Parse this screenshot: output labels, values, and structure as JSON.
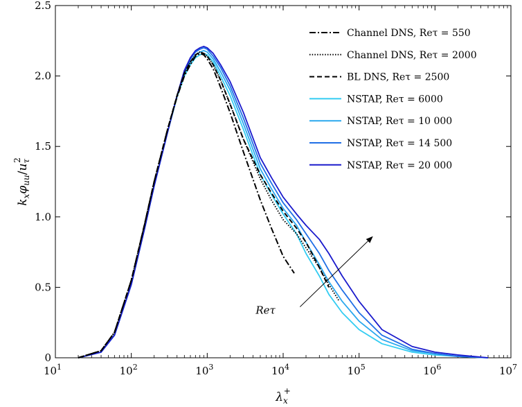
{
  "chart_data": {
    "type": "line",
    "xscale": "log",
    "xlim": [
      10,
      10000000
    ],
    "ylim": [
      0,
      2.5
    ],
    "xticks": [
      10,
      100,
      1000,
      10000,
      100000,
      1000000,
      10000000
    ],
    "xtick_labels": [
      {
        "base": "10",
        "exp": "1"
      },
      {
        "base": "10",
        "exp": "2"
      },
      {
        "base": "10",
        "exp": "3"
      },
      {
        "base": "10",
        "exp": "4"
      },
      {
        "base": "10",
        "exp": "5"
      },
      {
        "base": "10",
        "exp": "6"
      },
      {
        "base": "10",
        "exp": "7"
      }
    ],
    "yticks": [
      0,
      0.5,
      1.0,
      1.5,
      2.0,
      2.5
    ],
    "ytick_labels": [
      "0",
      "0.5",
      "1.0",
      "1.5",
      "2.0",
      "2.5"
    ],
    "xlabel": "λx+",
    "ylabel": "kxφuu/uτ2",
    "grid": false,
    "legend_position": "top-right",
    "annotation": {
      "text": "Reτ",
      "arrow_from": [
        30000,
        0.45
      ],
      "arrow_to": [
        150000,
        0.8
      ]
    },
    "series": [
      {
        "name": "Channel DNS, Reτ = 550",
        "color": "#000000",
        "style": "dashdot",
        "x": [
          20,
          40,
          60,
          100,
          150,
          200,
          300,
          400,
          500,
          600,
          700,
          800,
          900,
          1000,
          1200,
          1500,
          2000,
          3000,
          5000,
          7000,
          10000,
          14000
        ],
        "y": [
          0.0,
          0.05,
          0.18,
          0.55,
          0.95,
          1.25,
          1.62,
          1.85,
          2.0,
          2.08,
          2.14,
          2.16,
          2.15,
          2.12,
          2.05,
          1.92,
          1.74,
          1.46,
          1.12,
          0.92,
          0.72,
          0.6
        ]
      },
      {
        "name": "Channel DNS, Reτ = 2000",
        "color": "#000000",
        "style": "dotted",
        "x": [
          20,
          40,
          60,
          100,
          150,
          200,
          300,
          400,
          500,
          600,
          700,
          800,
          900,
          1000,
          1200,
          1500,
          2000,
          3000,
          5000,
          7000,
          10000,
          15000,
          20000,
          30000,
          40000,
          55000
        ],
        "y": [
          0.0,
          0.05,
          0.18,
          0.55,
          0.95,
          1.25,
          1.62,
          1.86,
          2.02,
          2.1,
          2.15,
          2.17,
          2.16,
          2.14,
          2.08,
          1.97,
          1.8,
          1.55,
          1.27,
          1.12,
          0.98,
          0.88,
          0.78,
          0.64,
          0.52,
          0.4
        ]
      },
      {
        "name": "BL DNS, Reτ = 2500",
        "color": "#000000",
        "style": "dashed",
        "x": [
          20,
          40,
          60,
          100,
          150,
          200,
          300,
          400,
          500,
          600,
          700,
          800,
          900,
          1000,
          1200,
          1500,
          2000,
          3000,
          5000,
          7000,
          10000,
          15000,
          20000,
          30000,
          40000
        ],
        "y": [
          0.0,
          0.05,
          0.18,
          0.55,
          0.95,
          1.25,
          1.62,
          1.86,
          2.02,
          2.1,
          2.15,
          2.17,
          2.16,
          2.14,
          2.08,
          1.97,
          1.8,
          1.55,
          1.3,
          1.17,
          1.04,
          0.92,
          0.82,
          0.64,
          0.5
        ]
      },
      {
        "name": "NSTAP, Reτ = 6000",
        "color": "#33CCF2",
        "style": "solid",
        "x": [
          20,
          40,
          60,
          100,
          150,
          200,
          300,
          400,
          500,
          600,
          700,
          800,
          900,
          1000,
          1200,
          1500,
          2000,
          3000,
          5000,
          7000,
          10000,
          15000,
          20000,
          30000,
          40000,
          60000,
          100000,
          200000,
          500000,
          1000000,
          2000000,
          5000000
        ],
        "y": [
          0.0,
          0.04,
          0.16,
          0.52,
          0.92,
          1.22,
          1.6,
          1.85,
          2.0,
          2.08,
          2.13,
          2.15,
          2.16,
          2.15,
          2.1,
          2.0,
          1.86,
          1.62,
          1.3,
          1.16,
          1.02,
          0.88,
          0.74,
          0.58,
          0.45,
          0.32,
          0.2,
          0.1,
          0.04,
          0.02,
          0.01,
          0.0
        ]
      },
      {
        "name": "NSTAP, Reτ = 10 000",
        "color": "#2AA8EE",
        "style": "solid",
        "x": [
          20,
          40,
          60,
          100,
          150,
          200,
          300,
          400,
          500,
          600,
          700,
          800,
          900,
          1000,
          1200,
          1500,
          2000,
          3000,
          5000,
          7000,
          10000,
          15000,
          20000,
          30000,
          40000,
          60000,
          100000,
          200000,
          500000,
          1000000,
          2000000,
          5000000
        ],
        "y": [
          0.0,
          0.04,
          0.16,
          0.52,
          0.92,
          1.22,
          1.6,
          1.86,
          2.02,
          2.1,
          2.15,
          2.17,
          2.18,
          2.17,
          2.12,
          2.03,
          1.9,
          1.66,
          1.34,
          1.2,
          1.06,
          0.94,
          0.82,
          0.66,
          0.54,
          0.4,
          0.26,
          0.13,
          0.05,
          0.03,
          0.01,
          0.0
        ]
      },
      {
        "name": "NSTAP, Reτ = 14 500",
        "color": "#1F6FE6",
        "style": "solid",
        "x": [
          20,
          40,
          60,
          100,
          150,
          200,
          300,
          400,
          500,
          600,
          700,
          800,
          900,
          1000,
          1200,
          1500,
          2000,
          3000,
          5000,
          7000,
          10000,
          15000,
          20000,
          30000,
          40000,
          60000,
          100000,
          200000,
          500000,
          1000000,
          2000000,
          5000000
        ],
        "y": [
          0.0,
          0.04,
          0.16,
          0.52,
          0.92,
          1.22,
          1.6,
          1.86,
          2.03,
          2.12,
          2.17,
          2.19,
          2.2,
          2.19,
          2.14,
          2.06,
          1.93,
          1.7,
          1.38,
          1.24,
          1.1,
          0.98,
          0.88,
          0.74,
          0.62,
          0.48,
          0.32,
          0.16,
          0.06,
          0.03,
          0.01,
          0.0
        ]
      },
      {
        "name": "NSTAP, Reτ = 20 000",
        "color": "#1A1ACC",
        "style": "solid",
        "x": [
          20,
          40,
          60,
          100,
          150,
          200,
          300,
          400,
          500,
          600,
          700,
          800,
          900,
          1000,
          1200,
          1500,
          2000,
          3000,
          5000,
          7000,
          10000,
          15000,
          20000,
          30000,
          40000,
          60000,
          100000,
          200000,
          500000,
          1000000,
          2000000,
          5000000
        ],
        "y": [
          0.0,
          0.04,
          0.16,
          0.52,
          0.92,
          1.22,
          1.6,
          1.86,
          2.04,
          2.13,
          2.18,
          2.2,
          2.21,
          2.2,
          2.16,
          2.08,
          1.96,
          1.74,
          1.42,
          1.28,
          1.14,
          1.02,
          0.94,
          0.84,
          0.74,
          0.58,
          0.4,
          0.2,
          0.08,
          0.04,
          0.02,
          0.0
        ]
      }
    ]
  }
}
